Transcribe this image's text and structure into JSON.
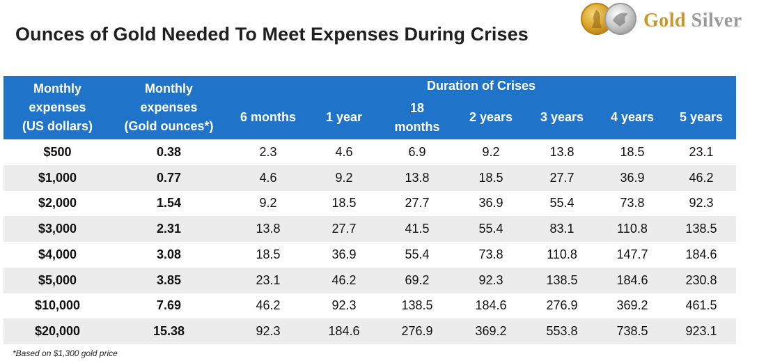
{
  "title": "Ounces of Gold Needed To Meet Expenses During Crises",
  "logo": {
    "gold_word": "Gold",
    "silver_word": "Silver",
    "coin_icons": [
      "gold-coin-icon",
      "silver-coin-icon"
    ]
  },
  "header": {
    "col_monthly_usd": [
      "Monthly",
      "expenses",
      "(US dollars)"
    ],
    "col_monthly_gold": [
      "Monthly",
      "expenses",
      "(Gold ounces*)"
    ],
    "duration_group": "Duration of Crises",
    "durations": [
      "6 months",
      "1 year",
      "18 months",
      "2 years",
      "3 years",
      "4 years",
      "5 years"
    ]
  },
  "rows": [
    {
      "usd": "$500",
      "gold": "0.38",
      "values": [
        "2.3",
        "4.6",
        "6.9",
        "9.2",
        "13.8",
        "18.5",
        "23.1"
      ]
    },
    {
      "usd": "$1,000",
      "gold": "0.77",
      "values": [
        "4.6",
        "9.2",
        "13.8",
        "18.5",
        "27.7",
        "36.9",
        "46.2"
      ]
    },
    {
      "usd": "$2,000",
      "gold": "1.54",
      "values": [
        "9.2",
        "18.5",
        "27.7",
        "36.9",
        "55.4",
        "73.8",
        "92.3"
      ]
    },
    {
      "usd": "$3,000",
      "gold": "2.31",
      "values": [
        "13.8",
        "27.7",
        "41.5",
        "55.4",
        "83.1",
        "110.8",
        "138.5"
      ]
    },
    {
      "usd": "$4,000",
      "gold": "3.08",
      "values": [
        "18.5",
        "36.9",
        "55.4",
        "73.8",
        "110.8",
        "147.7",
        "184.6"
      ]
    },
    {
      "usd": "$5,000",
      "gold": "3.85",
      "values": [
        "23.1",
        "46.2",
        "69.2",
        "92.3",
        "138.5",
        "184.6",
        "230.8"
      ]
    },
    {
      "usd": "$10,000",
      "gold": "7.69",
      "values": [
        "46.2",
        "92.3",
        "138.5",
        "184.6",
        "276.9",
        "369.2",
        "461.5"
      ]
    },
    {
      "usd": "$20,000",
      "gold": "15.38",
      "values": [
        "92.3",
        "184.6",
        "276.9",
        "369.2",
        "553.8",
        "738.5",
        "923.1"
      ]
    }
  ],
  "footnote": "*Based on $1,300 gold price",
  "colors": {
    "header_bg": "#1f73c9",
    "stripe": "#ececec",
    "logo_gold": "#c9962a",
    "logo_silver": "#9a9a9a"
  }
}
